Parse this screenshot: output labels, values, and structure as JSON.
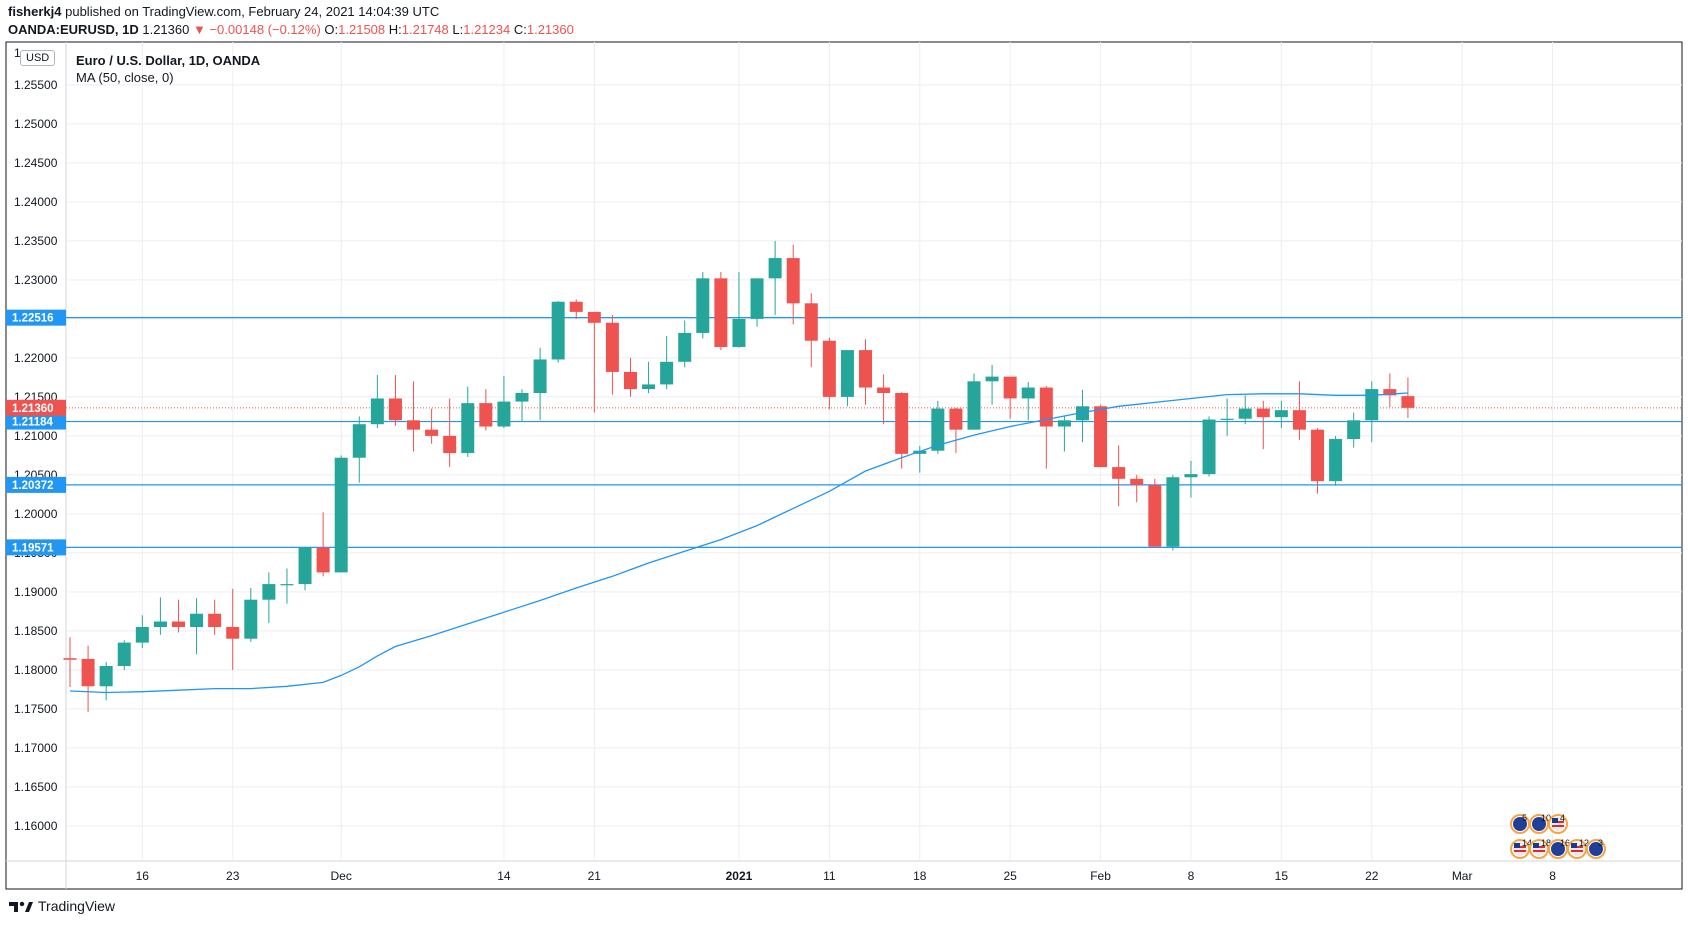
{
  "header": {
    "publisher": "fisherkj4",
    "published_text": "published on TradingView.com, February 24, 2021 14:04:39 UTC",
    "symbol": "OANDA:EURUSD, 1D",
    "last": "1.21360",
    "change": "▼ −0.00148 (−0.12%)",
    "o_label": "O:",
    "o_val": "1.21508",
    "h_label": "H:",
    "h_val": "1.21748",
    "l_label": "L:",
    "l_val": "1.21234",
    "c_label": "C:",
    "c_val": "1.21360"
  },
  "legend": {
    "title": "Euro / U.S. Dollar, 1D, OANDA",
    "indicator": "MA (50, close, 0)"
  },
  "currency_tag": "USD",
  "footer": {
    "brand": "TradingView"
  },
  "colors": {
    "up": "#26a69a",
    "down": "#ef5350",
    "ma": "#2196f3",
    "hline": "#2196f3",
    "last": "#ef5350",
    "grid": "#eceef2"
  },
  "chart_data": {
    "type": "candlestick",
    "title": "Euro / U.S. Dollar, 1D, OANDA",
    "ylim": [
      1.1555,
      1.2605
    ],
    "y_ticks": [
      "1.16000",
      "1.16500",
      "1.17000",
      "1.17500",
      "1.18000",
      "1.18500",
      "1.19000",
      "1.19500",
      "1.20000",
      "1.20500",
      "1.21000",
      "1.21500",
      "1.22000",
      "1.22500",
      "1.23000",
      "1.23500",
      "1.24000",
      "1.24500",
      "1.25000",
      "1.25500"
    ],
    "top_tick_partial": "1",
    "x_ticks": [
      {
        "i": 4,
        "label": "16"
      },
      {
        "i": 9,
        "label": "23"
      },
      {
        "i": 15,
        "label": "Dec"
      },
      {
        "i": 24,
        "label": "14"
      },
      {
        "i": 29,
        "label": "21"
      },
      {
        "i": 37,
        "label": "2021"
      },
      {
        "i": 42,
        "label": "11"
      },
      {
        "i": 47,
        "label": "18"
      },
      {
        "i": 52,
        "label": "25"
      },
      {
        "i": 57,
        "label": "Feb"
      },
      {
        "i": 62,
        "label": "8"
      },
      {
        "i": 67,
        "label": "15"
      },
      {
        "i": 72,
        "label": "22"
      },
      {
        "i": 77,
        "label": "Mar"
      },
      {
        "i": 82,
        "label": "8"
      }
    ],
    "candles": [
      [
        1.1815,
        1.1842,
        1.1778,
        1.1813
      ],
      [
        1.1814,
        1.1831,
        1.1746,
        1.1779
      ],
      [
        1.1779,
        1.181,
        1.1761,
        1.1805
      ],
      [
        1.1805,
        1.1838,
        1.18,
        1.1835
      ],
      [
        1.1835,
        1.187,
        1.1828,
        1.1855
      ],
      [
        1.1855,
        1.1893,
        1.1845,
        1.1862
      ],
      [
        1.1862,
        1.189,
        1.1848,
        1.1855
      ],
      [
        1.1855,
        1.1892,
        1.182,
        1.1872
      ],
      [
        1.1872,
        1.189,
        1.1845,
        1.1855
      ],
      [
        1.1855,
        1.1904,
        1.18,
        1.184
      ],
      [
        1.184,
        1.1905,
        1.1836,
        1.189
      ],
      [
        1.189,
        1.1925,
        1.186,
        1.191
      ],
      [
        1.191,
        1.193,
        1.1885,
        1.191
      ],
      [
        1.191,
        1.1958,
        1.1902,
        1.1957
      ],
      [
        1.1957,
        1.2002,
        1.192,
        1.1925
      ],
      [
        1.1925,
        1.2075,
        1.1925,
        1.2072
      ],
      [
        1.2072,
        1.2125,
        1.204,
        1.2115
      ],
      [
        1.2115,
        1.2178,
        1.211,
        1.2148
      ],
      [
        1.2148,
        1.2178,
        1.2113,
        1.212
      ],
      [
        1.212,
        1.217,
        1.208,
        1.2108
      ],
      [
        1.2108,
        1.2135,
        1.209,
        1.21
      ],
      [
        1.21,
        1.2148,
        1.206,
        1.2078
      ],
      [
        1.2078,
        1.2163,
        1.2073,
        1.2142
      ],
      [
        1.2142,
        1.216,
        1.2107,
        1.2112
      ],
      [
        1.2112,
        1.2177,
        1.211,
        1.2144
      ],
      [
        1.2144,
        1.216,
        1.2118,
        1.2155
      ],
      [
        1.2155,
        1.2213,
        1.212,
        1.2198
      ],
      [
        1.2198,
        1.2273,
        1.2194,
        1.2272
      ],
      [
        1.2272,
        1.2275,
        1.225,
        1.2259
      ],
      [
        1.2259,
        1.2255,
        1.213,
        1.2245
      ],
      [
        1.2245,
        1.2255,
        1.2153,
        1.2182
      ],
      [
        1.2182,
        1.22,
        1.215,
        1.216
      ],
      [
        1.216,
        1.2195,
        1.2155,
        1.2166
      ],
      [
        1.2166,
        1.2228,
        1.216,
        1.2195
      ],
      [
        1.2195,
        1.2248,
        1.2188,
        1.2232
      ],
      [
        1.2232,
        1.231,
        1.2225,
        1.2302
      ],
      [
        1.2302,
        1.231,
        1.221,
        1.2214
      ],
      [
        1.2214,
        1.231,
        1.2213,
        1.225
      ],
      [
        1.225,
        1.23,
        1.224,
        1.2302
      ],
      [
        1.2302,
        1.235,
        1.2255,
        1.2328
      ],
      [
        1.2328,
        1.2345,
        1.2243,
        1.227
      ],
      [
        1.227,
        1.2283,
        1.2188,
        1.2222
      ],
      [
        1.2222,
        1.2226,
        1.2134,
        1.215
      ],
      [
        1.215,
        1.221,
        1.2138,
        1.221
      ],
      [
        1.221,
        1.2224,
        1.214,
        1.2162
      ],
      [
        1.2162,
        1.2179,
        1.2115,
        1.2155
      ],
      [
        1.2155,
        1.2156,
        1.2058,
        1.2077
      ],
      [
        1.2077,
        1.2087,
        1.2053,
        1.2081
      ],
      [
        1.2081,
        1.2145,
        1.2077,
        1.2135
      ],
      [
        1.2135,
        1.2136,
        1.2078,
        1.2108
      ],
      [
        1.2108,
        1.218,
        1.2108,
        1.217
      ],
      [
        1.217,
        1.2191,
        1.214,
        1.2176
      ],
      [
        1.2176,
        1.2175,
        1.2122,
        1.2148
      ],
      [
        1.2148,
        1.2169,
        1.212,
        1.2162
      ],
      [
        1.2162,
        1.2164,
        1.2058,
        1.2112
      ],
      [
        1.2112,
        1.2125,
        1.208,
        1.212
      ],
      [
        1.212,
        1.2159,
        1.2092,
        1.2138
      ],
      [
        1.2138,
        1.214,
        1.206,
        1.206
      ],
      [
        1.206,
        1.2088,
        1.201,
        1.2045
      ],
      [
        1.2045,
        1.205,
        1.2015,
        1.2037
      ],
      [
        1.2037,
        1.2045,
        1.1958,
        1.1958
      ],
      [
        1.1958,
        1.205,
        1.1953,
        1.2047
      ],
      [
        1.2047,
        1.2068,
        1.2021,
        1.2051
      ],
      [
        1.2051,
        1.2125,
        1.2048,
        1.2121
      ],
      [
        1.2121,
        1.2148,
        1.21,
        1.2122
      ],
      [
        1.2122,
        1.2152,
        1.2115,
        1.2135
      ],
      [
        1.2135,
        1.2145,
        1.2083,
        1.2124
      ],
      [
        1.2124,
        1.2145,
        1.211,
        1.2133
      ],
      [
        1.2133,
        1.217,
        1.2095,
        1.2108
      ],
      [
        1.2108,
        1.211,
        1.2026,
        1.2042
      ],
      [
        1.2042,
        1.21,
        1.2036,
        1.2096
      ],
      [
        1.2096,
        1.213,
        1.2085,
        1.212
      ],
      [
        1.212,
        1.217,
        1.2092,
        1.216
      ],
      [
        1.216,
        1.218,
        1.2137,
        1.2152
      ],
      [
        1.2151,
        1.2175,
        1.2123,
        1.2136
      ]
    ],
    "ma": {
      "name": "MA (50, close, 0)",
      "points": [
        [
          0,
          1.1773
        ],
        [
          2,
          1.1771
        ],
        [
          4,
          1.1772
        ],
        [
          6,
          1.1774
        ],
        [
          8,
          1.1776
        ],
        [
          10,
          1.1776
        ],
        [
          12,
          1.1779
        ],
        [
          14,
          1.1784
        ],
        [
          15,
          1.1793
        ],
        [
          16,
          1.1804
        ],
        [
          17,
          1.1818
        ],
        [
          18,
          1.183
        ],
        [
          20,
          1.1844
        ],
        [
          22,
          1.1859
        ],
        [
          24,
          1.1874
        ],
        [
          26,
          1.1889
        ],
        [
          28,
          1.1905
        ],
        [
          30,
          1.192
        ],
        [
          32,
          1.1937
        ],
        [
          34,
          1.1952
        ],
        [
          36,
          1.1967
        ],
        [
          38,
          1.1985
        ],
        [
          40,
          1.2007
        ],
        [
          42,
          1.2029
        ],
        [
          44,
          1.2055
        ],
        [
          46,
          1.2072
        ],
        [
          48,
          1.2088
        ],
        [
          50,
          1.2101
        ],
        [
          52,
          1.2112
        ],
        [
          54,
          1.2121
        ],
        [
          56,
          1.213
        ],
        [
          58,
          1.2138
        ],
        [
          60,
          1.2143
        ],
        [
          62,
          1.2148
        ],
        [
          64,
          1.2153
        ],
        [
          66,
          1.2154
        ],
        [
          68,
          1.2154
        ],
        [
          70,
          1.2152
        ],
        [
          72,
          1.2152
        ],
        [
          74,
          1.2155
        ]
      ]
    },
    "h_lines": [
      {
        "value": 1.22516,
        "label": "1.22516"
      },
      {
        "value": 1.21184,
        "label": "1.21184"
      },
      {
        "value": 1.20372,
        "label": "1.20372"
      },
      {
        "value": 1.19571,
        "label": "1.19571"
      }
    ],
    "last_price": {
      "value": 1.2136,
      "label": "1.21360"
    },
    "event_badges": {
      "row1": [
        "5",
        "10",
        "4"
      ],
      "row2": [
        "14",
        "18",
        "16",
        "12",
        "3"
      ]
    }
  }
}
